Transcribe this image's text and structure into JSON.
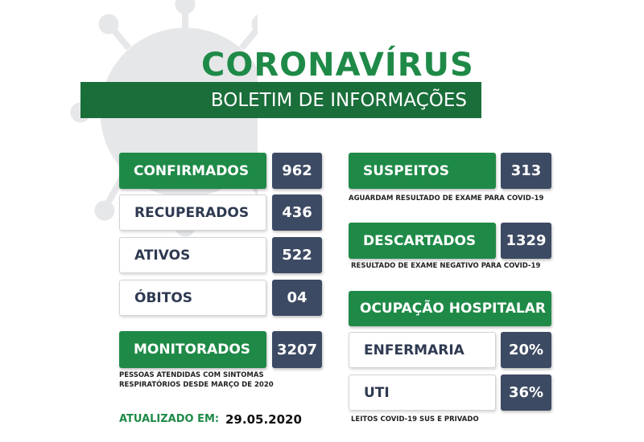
{
  "header": {
    "title": "CORONAVÍRUS",
    "subtitle": "BOLETIM DE INFORMAÇÕES"
  },
  "left": [
    {
      "label": "CONFIRMADOS",
      "value": "962"
    },
    {
      "label": "RECUPERADOS",
      "value": "436"
    },
    {
      "label": "ATIVOS",
      "value": "522"
    },
    {
      "label": "ÓBITOS",
      "value": "04"
    }
  ],
  "monitored": {
    "label": "MONITORADOS",
    "value": "3207",
    "note": "PESSOAS ATENDIDAS COM SINTOMAS RESPIRATÓRIOS DESDE MARÇO DE 2020"
  },
  "updated": {
    "label": "ATUALIZADO EM:",
    "date": "29.05.2020"
  },
  "suspects": {
    "label": "SUSPEITOS",
    "value": "313",
    "note": "AGUARDAM RESULTADO DE EXAME PARA COVID-19"
  },
  "discarded": {
    "label": "DESCARTADOS",
    "value": "1329",
    "note": "RESULTADO DE EXAME NEGATIVO PARA COVID-19"
  },
  "hospital": {
    "title": "OCUPAÇÃO HOSPITALAR",
    "rows": [
      {
        "label": "ENFERMARIA",
        "value": "20%"
      },
      {
        "label": "UTI",
        "value": "36%"
      }
    ],
    "note": "LEITOS COVID-19 SUS E PRIVADO"
  }
}
